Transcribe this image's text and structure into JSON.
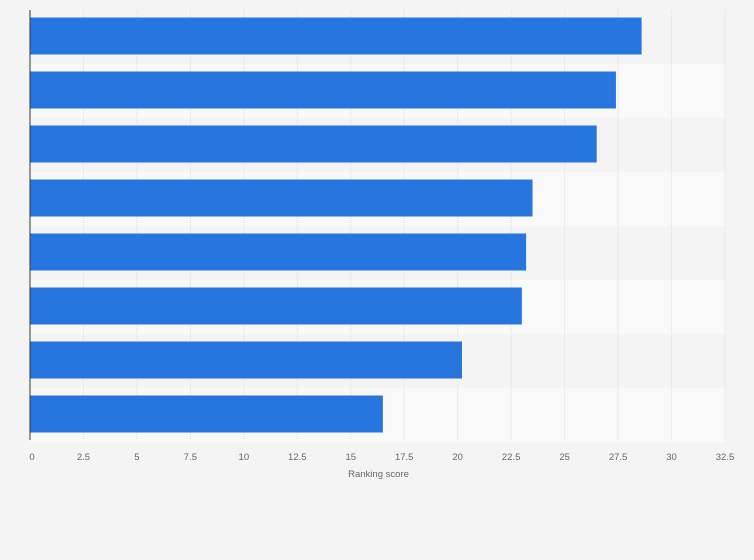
{
  "chart_data": {
    "type": "bar",
    "orientation": "horizontal",
    "categories": [
      "",
      "",
      "",
      "",
      "",
      "",
      "",
      ""
    ],
    "values": [
      28.6,
      27.4,
      26.5,
      23.5,
      23.2,
      23.0,
      20.2,
      16.5
    ],
    "title": "",
    "xlabel": "Ranking score",
    "ylabel": "",
    "xlim": [
      0,
      32.5
    ],
    "xticks": [
      "0",
      "2.5",
      "5",
      "7.5",
      "10",
      "12.5",
      "15",
      "17.5",
      "20",
      "22.5",
      "25",
      "27.5",
      "30",
      "32.5"
    ],
    "grid": true,
    "legend": "none",
    "colors": {
      "bar": "#2775de",
      "background": "#f4f4f4",
      "plot_band": "#f9f9f9",
      "grid": "#dddddd",
      "axis": "#333333"
    }
  }
}
